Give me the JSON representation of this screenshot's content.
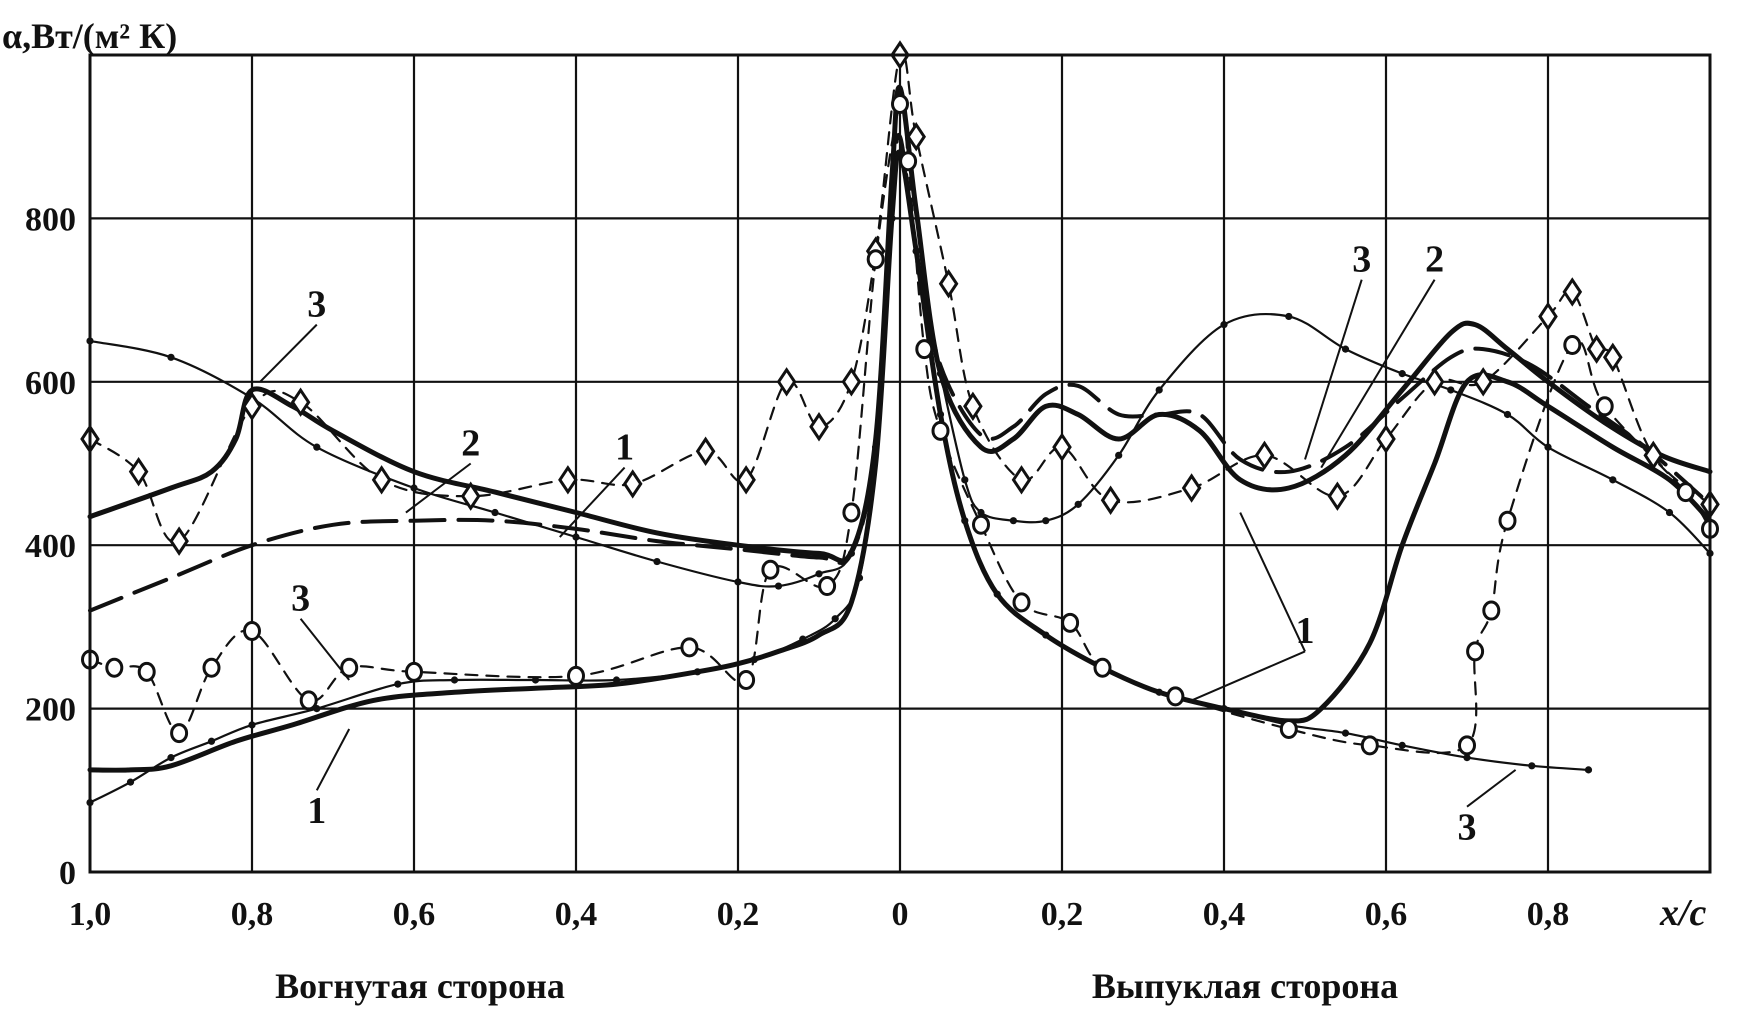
{
  "chart_data": {
    "type": "line",
    "ylabel": "α,Вт/(м² К)",
    "xlabel": "x/c",
    "captions": {
      "left": "Вогнутая сторона",
      "right": "Выпуклая сторона"
    },
    "y_ticks": [
      "0",
      "200",
      "400",
      "600",
      "800"
    ],
    "x_ticks_left": [
      "1,0",
      "0,8",
      "0,6",
      "0,4",
      "0,2"
    ],
    "x_tick_center": "0",
    "x_ticks_right": [
      "0,2",
      "0,4",
      "0,6",
      "0,8"
    ],
    "ylim": [
      0,
      1000
    ],
    "xlim": [
      -1.0,
      1.0
    ],
    "x_axis_note": "x<0 — Вогнутая сторона (concave), x>0 — Выпуклая сторона (convex); abscissa = signed x/c",
    "grid": true,
    "legend": "none",
    "annotations": [
      {
        "text": "3",
        "x": -0.72,
        "y": 680
      },
      {
        "text": "2",
        "x": -0.53,
        "y": 510
      },
      {
        "text": "1",
        "x": -0.34,
        "y": 505
      },
      {
        "text": "3",
        "x": -0.74,
        "y": 320
      },
      {
        "text": "1",
        "x": -0.72,
        "y": 60
      },
      {
        "text": "3",
        "x": 0.57,
        "y": 735
      },
      {
        "text": "2",
        "x": 0.66,
        "y": 735
      },
      {
        "text": "1",
        "x": 0.5,
        "y": 280
      },
      {
        "text": "3",
        "x": 0.7,
        "y": 40
      }
    ],
    "series": [
      {
        "style": "thick-solid",
        "x": [
          -1.0,
          -0.9,
          -0.85,
          -0.82,
          -0.8,
          -0.75,
          -0.7,
          -0.6,
          -0.5,
          -0.4,
          -0.3,
          -0.2,
          -0.1,
          -0.06,
          -0.03,
          -0.01,
          0.0,
          0.02,
          0.05,
          0.1,
          0.14,
          0.18,
          0.22,
          0.27,
          0.32,
          0.37,
          0.42,
          0.48,
          0.55,
          0.62,
          0.68,
          0.71,
          0.75,
          0.8,
          0.87,
          0.94,
          1.0
        ],
        "y": [
          435,
          470,
          490,
          530,
          590,
          570,
          540,
          490,
          465,
          440,
          415,
          400,
          390,
          392,
          530,
          850,
          960,
          810,
          610,
          520,
          530,
          570,
          560,
          530,
          560,
          540,
          480,
          470,
          510,
          590,
          660,
          670,
          640,
          600,
          550,
          510,
          490
        ]
      },
      {
        "style": "dashed",
        "x": [
          -1.0,
          -0.9,
          -0.8,
          -0.7,
          -0.6,
          -0.5,
          -0.4,
          -0.3,
          -0.2,
          -0.1,
          -0.06,
          -0.03,
          -0.01,
          0.0,
          0.02,
          0.05,
          0.1,
          0.14,
          0.18,
          0.22,
          0.27,
          0.32,
          0.37,
          0.42,
          0.48,
          0.55,
          0.62,
          0.68,
          0.72,
          0.78,
          0.85,
          0.92,
          1.0
        ],
        "y": [
          320,
          360,
          400,
          425,
          430,
          430,
          420,
          405,
          395,
          385,
          390,
          520,
          820,
          900,
          760,
          620,
          535,
          545,
          585,
          595,
          560,
          560,
          560,
          505,
          490,
          520,
          580,
          630,
          640,
          620,
          570,
          520,
          450
        ]
      },
      {
        "style": "thin-solid-dotted",
        "x": [
          -1.0,
          -0.9,
          -0.8,
          -0.72,
          -0.6,
          -0.5,
          -0.4,
          -0.3,
          -0.2,
          -0.15,
          -0.1,
          -0.06,
          -0.03,
          -0.01,
          0.0,
          0.02,
          0.05,
          0.08,
          0.1,
          0.14,
          0.18,
          0.22,
          0.27,
          0.32,
          0.4,
          0.48,
          0.55,
          0.62,
          0.68,
          0.75,
          0.8,
          0.88,
          0.95,
          1.0
        ],
        "y": [
          650,
          630,
          580,
          520,
          470,
          440,
          410,
          380,
          355,
          350,
          365,
          390,
          520,
          800,
          880,
          760,
          610,
          480,
          440,
          430,
          430,
          450,
          510,
          590,
          670,
          680,
          640,
          610,
          590,
          560,
          520,
          480,
          440,
          390
        ]
      },
      {
        "style": "thick-solid",
        "x": [
          -1.0,
          -0.95,
          -0.9,
          -0.82,
          -0.75,
          -0.65,
          -0.55,
          -0.45,
          -0.35,
          -0.25,
          -0.2,
          -0.15,
          -0.1,
          -0.06,
          -0.03,
          -0.01,
          0.0,
          0.02,
          0.05,
          0.08,
          0.12,
          0.18,
          0.25,
          0.32,
          0.4,
          0.48,
          0.52,
          0.58,
          0.62,
          0.66,
          0.7,
          0.75,
          0.8,
          0.88,
          0.95,
          1.0
        ],
        "y": [
          125,
          125,
          130,
          160,
          180,
          210,
          220,
          225,
          230,
          245,
          255,
          270,
          290,
          330,
          500,
          800,
          880,
          760,
          560,
          430,
          340,
          290,
          250,
          220,
          200,
          185,
          200,
          280,
          400,
          500,
          600,
          600,
          570,
          520,
          480,
          430
        ]
      },
      {
        "style": "thin-solid-dotted",
        "x": [
          -1.0,
          -0.95,
          -0.9,
          -0.85,
          -0.8,
          -0.72,
          -0.62,
          -0.55,
          -0.45,
          -0.35,
          -0.25,
          -0.18,
          -0.12,
          -0.08,
          -0.05,
          -0.03,
          -0.01,
          0.0,
          0.02,
          0.05,
          0.08,
          0.12,
          0.18,
          0.25,
          0.32,
          0.4,
          0.48,
          0.55,
          0.62,
          0.7,
          0.78,
          0.85
        ],
        "y": [
          85,
          110,
          140,
          160,
          180,
          200,
          230,
          235,
          235,
          235,
          245,
          260,
          285,
          310,
          360,
          520,
          800,
          880,
          760,
          560,
          430,
          340,
          290,
          250,
          220,
          200,
          180,
          170,
          155,
          140,
          130,
          125
        ]
      },
      {
        "style": "dashed-diamond",
        "marker": "diamond",
        "x": [
          -1.0,
          -0.94,
          -0.89,
          -0.8,
          -0.74,
          -0.64,
          -0.53,
          -0.41,
          -0.33,
          -0.24,
          -0.19,
          -0.14,
          -0.1,
          -0.06,
          -0.03,
          0.0,
          0.02,
          0.06,
          0.09,
          0.15,
          0.2,
          0.26,
          0.36,
          0.45,
          0.54,
          0.6,
          0.66,
          0.72,
          0.8,
          0.83,
          0.86,
          0.88,
          0.93,
          1.0
        ],
        "y": [
          530,
          490,
          405,
          570,
          575,
          480,
          460,
          480,
          475,
          515,
          480,
          600,
          545,
          600,
          760,
          1000,
          900,
          720,
          570,
          480,
          520,
          455,
          470,
          510,
          460,
          530,
          600,
          600,
          680,
          710,
          640,
          630,
          510,
          450
        ]
      },
      {
        "style": "dashed-circle",
        "marker": "circle",
        "x": [
          -1.0,
          -0.97,
          -0.93,
          -0.89,
          -0.85,
          -0.8,
          -0.73,
          -0.68,
          -0.6,
          -0.4,
          -0.26,
          -0.19,
          -0.16,
          -0.09,
          -0.06,
          -0.03,
          0.0,
          0.01,
          0.03,
          0.05,
          0.1,
          0.15,
          0.21,
          0.25,
          0.34,
          0.48,
          0.58,
          0.7,
          0.71,
          0.73,
          0.75,
          0.83,
          0.87,
          0.97,
          1.0
        ],
        "y": [
          260,
          250,
          245,
          170,
          250,
          295,
          210,
          250,
          245,
          240,
          275,
          235,
          370,
          350,
          440,
          750,
          940,
          870,
          640,
          540,
          425,
          330,
          305,
          250,
          215,
          175,
          155,
          155,
          270,
          320,
          430,
          645,
          570,
          465,
          420
        ]
      }
    ]
  }
}
